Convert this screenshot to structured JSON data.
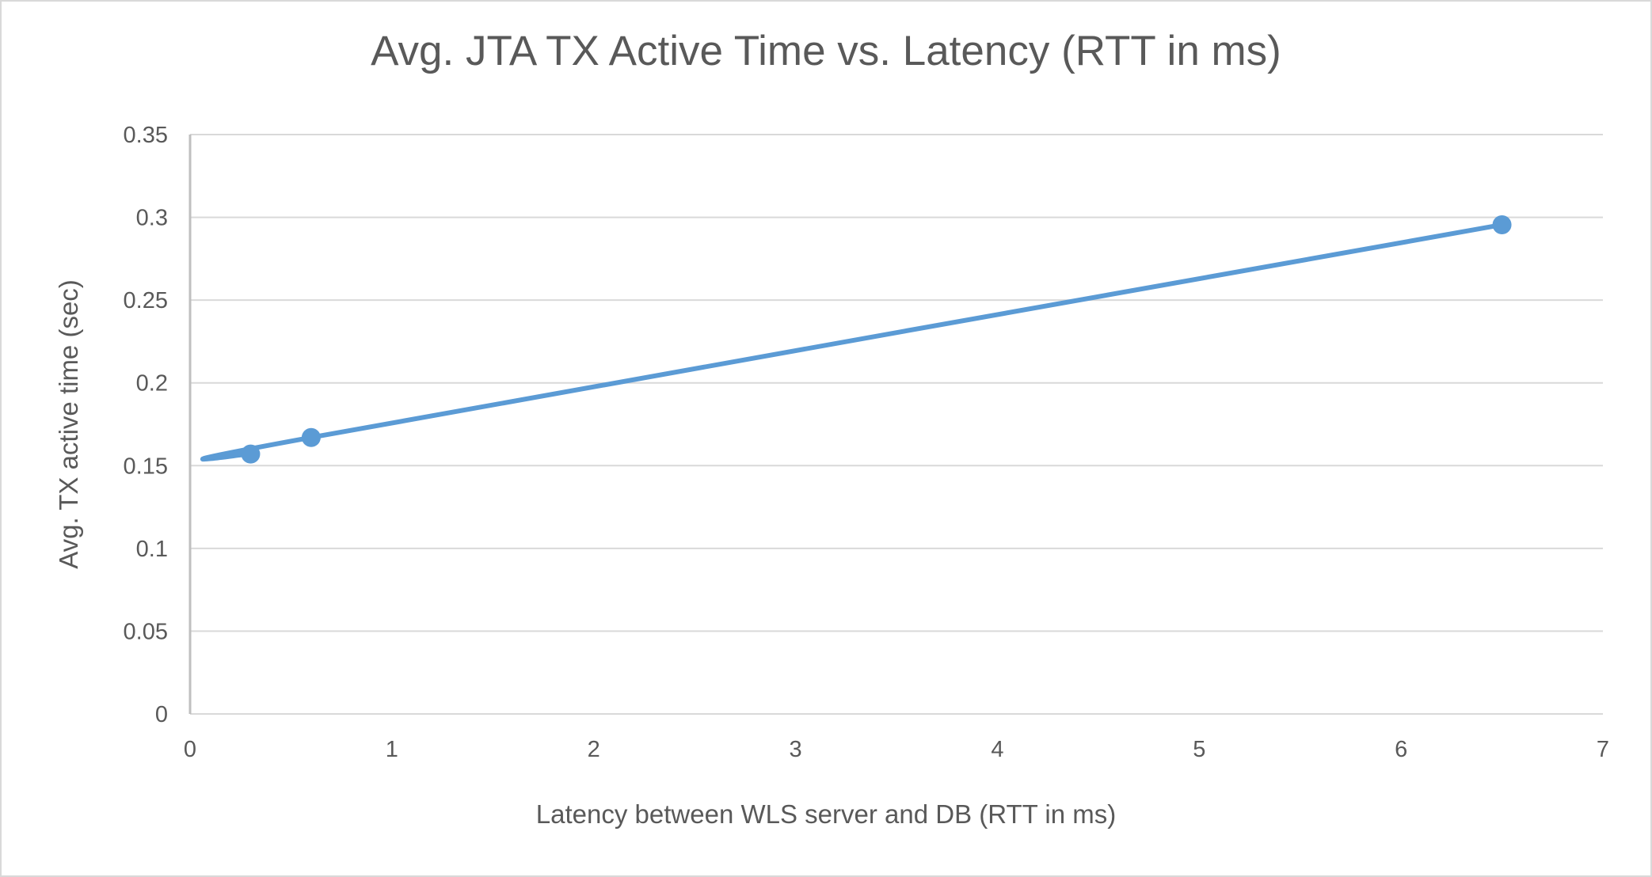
{
  "chart_data": {
    "type": "scatter",
    "title": "Avg. JTA TX Active Time vs. Latency (RTT in ms)",
    "xlabel": "Latency between WLS server and DB (RTT in ms)",
    "ylabel": "Avg. TX active time (sec)",
    "xlim": [
      0,
      7
    ],
    "ylim": [
      0,
      0.35
    ],
    "x_ticks": [
      "0",
      "1",
      "2",
      "3",
      "4",
      "5",
      "6",
      "7"
    ],
    "y_ticks": [
      "0",
      "0.05",
      "0.1",
      "0.15",
      "0.2",
      "0.25",
      "0.3",
      "0.35"
    ],
    "grid": "horizontal",
    "smoothed_line": true,
    "series": [
      {
        "x": [
          0.3,
          0.6,
          6.5
        ],
        "y": [
          0.157,
          0.167,
          0.2955
        ],
        "color": "#5B9BD5"
      }
    ],
    "gridline_color": "#D9D9D9",
    "text_color": "#595959"
  }
}
